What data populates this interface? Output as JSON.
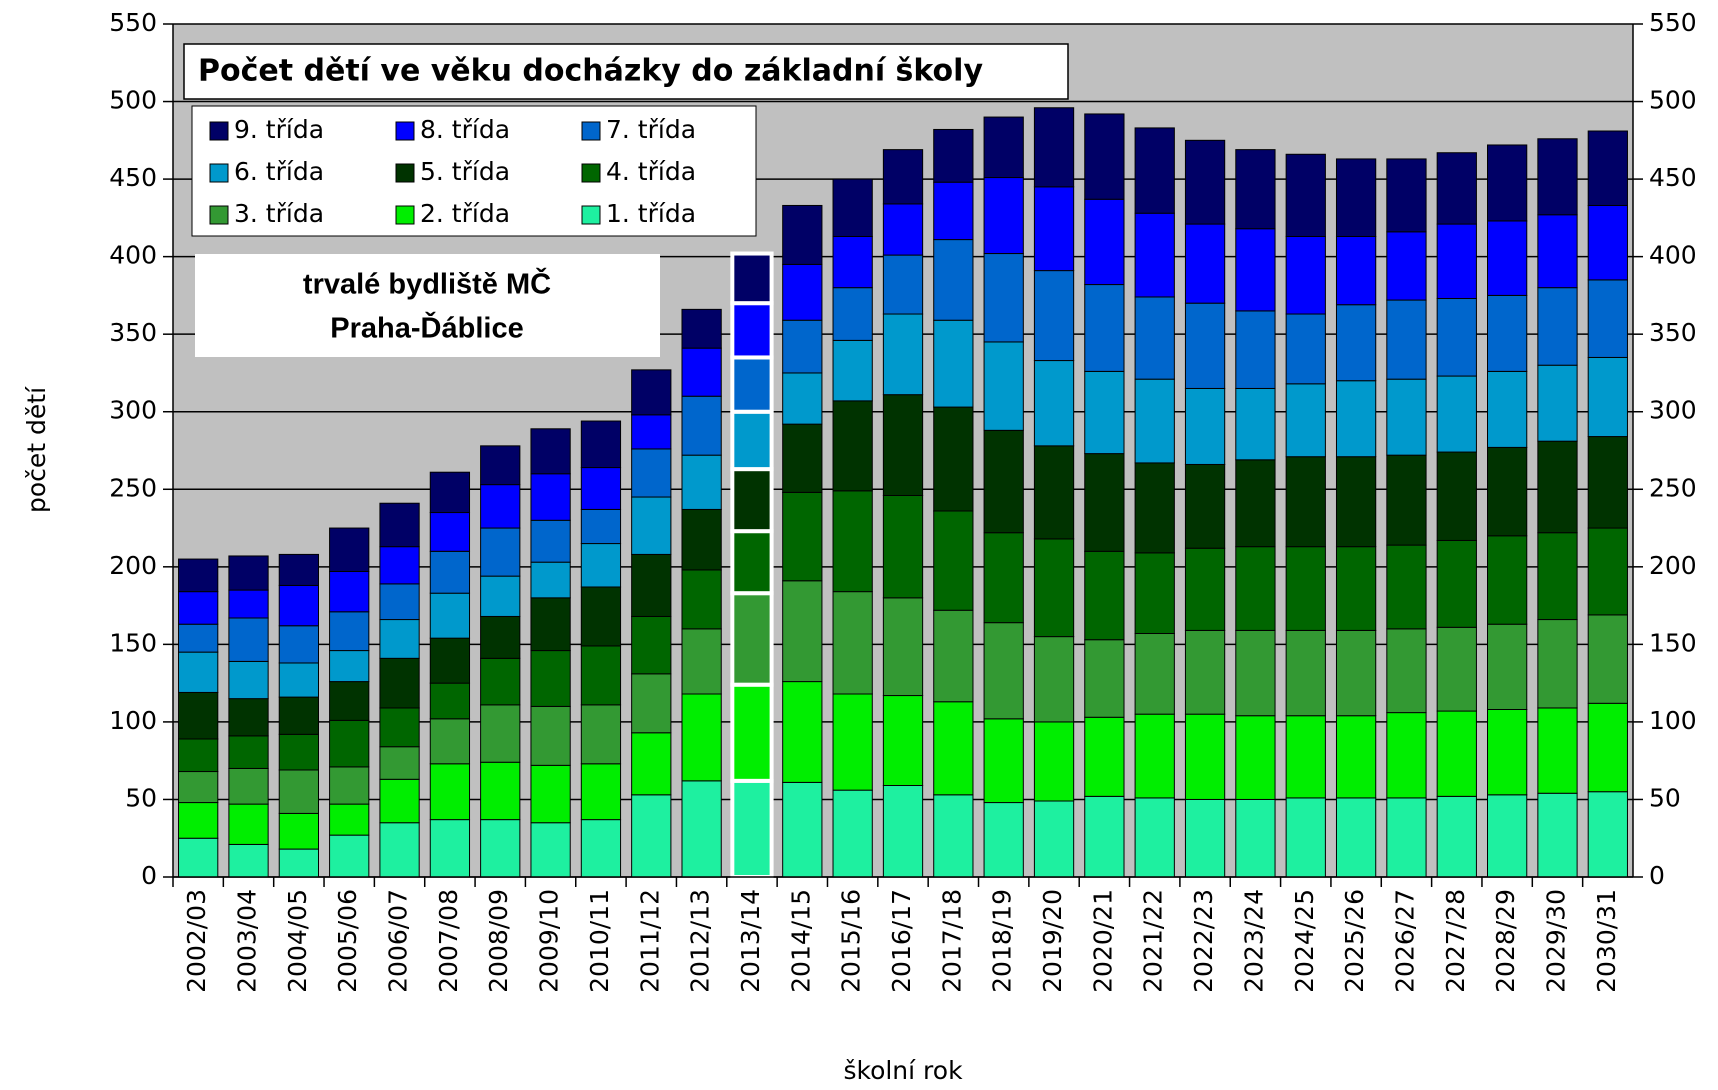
{
  "chart_data": {
    "type": "stacked_bar",
    "title": "Počet dětí ve věku docházky do základní školy",
    "annotation": [
      "trvalé bydliště MČ",
      "Praha-Ďáblice"
    ],
    "xlabel": "školní rok",
    "ylabel": "počet dětí",
    "categories": [
      "2002/03",
      "2003/04",
      "2004/05",
      "2005/06",
      "2006/07",
      "2007/08",
      "2008/09",
      "2009/10",
      "2010/11",
      "2011/12",
      "2012/13",
      "2013/14",
      "2014/15",
      "2015/16",
      "2016/17",
      "2017/18",
      "2018/19",
      "2019/20",
      "2020/21",
      "2021/22",
      "2022/23",
      "2023/24",
      "2024/25",
      "2025/26",
      "2026/27",
      "2027/28",
      "2028/29",
      "2029/30",
      "2030/31"
    ],
    "highlight": 11,
    "ylim": [
      0,
      550
    ],
    "yticks": [
      0,
      50,
      100,
      150,
      200,
      250,
      300,
      350,
      400,
      450,
      500,
      550
    ],
    "y2lim": [
      0,
      550
    ],
    "y2ticks": [
      0,
      50,
      100,
      150,
      200,
      250,
      300,
      350,
      400,
      450,
      500,
      550
    ],
    "grid": true,
    "legend": "top-left",
    "series": [
      {
        "name": "1. třída",
        "color": "#1ef0a0",
        "values": [
          25,
          21,
          18,
          27,
          35,
          37,
          37,
          35,
          37,
          53,
          62,
          62,
          61,
          56,
          59,
          53,
          48,
          49,
          52,
          51,
          50,
          50,
          51,
          51,
          51,
          52,
          53,
          54,
          55
        ]
      },
      {
        "name": "2. třída",
        "color": "#00ee00",
        "values": [
          23,
          26,
          23,
          20,
          28,
          36,
          37,
          37,
          36,
          40,
          56,
          62,
          65,
          62,
          58,
          60,
          54,
          51,
          51,
          54,
          55,
          54,
          53,
          53,
          55,
          55,
          55,
          55,
          57
        ]
      },
      {
        "name": "3. třída",
        "color": "#339933",
        "values": [
          20,
          23,
          28,
          24,
          21,
          29,
          37,
          38,
          38,
          38,
          42,
          59,
          65,
          66,
          63,
          59,
          62,
          55,
          50,
          52,
          54,
          55,
          55,
          55,
          54,
          54,
          55,
          57,
          57
        ]
      },
      {
        "name": "4. třída",
        "color": "#006600",
        "values": [
          21,
          21,
          23,
          30,
          25,
          23,
          30,
          36,
          38,
          37,
          38,
          40,
          57,
          65,
          66,
          64,
          58,
          63,
          57,
          52,
          53,
          54,
          54,
          54,
          54,
          56,
          57,
          56,
          56
        ]
      },
      {
        "name": "5. třída",
        "color": "#003300",
        "values": [
          30,
          24,
          24,
          25,
          32,
          29,
          27,
          34,
          38,
          40,
          39,
          40,
          44,
          58,
          65,
          67,
          66,
          60,
          63,
          58,
          54,
          56,
          58,
          58,
          58,
          57,
          57,
          59,
          59
        ]
      },
      {
        "name": "6. třída",
        "color": "#0099cc",
        "values": [
          26,
          24,
          22,
          20,
          25,
          29,
          26,
          23,
          28,
          37,
          35,
          37,
          33,
          39,
          52,
          56,
          57,
          55,
          53,
          54,
          49,
          46,
          47,
          49,
          49,
          49,
          49,
          49,
          51
        ]
      },
      {
        "name": "7. třída",
        "color": "#0066cc",
        "values": [
          18,
          28,
          24,
          25,
          23,
          27,
          31,
          27,
          22,
          31,
          38,
          35,
          34,
          34,
          38,
          52,
          57,
          58,
          56,
          53,
          55,
          50,
          45,
          49,
          51,
          50,
          49,
          50,
          50
        ]
      },
      {
        "name": "8. třída",
        "color": "#0000ff",
        "values": [
          21,
          18,
          26,
          26,
          24,
          25,
          28,
          30,
          27,
          22,
          31,
          35,
          36,
          33,
          33,
          37,
          49,
          54,
          55,
          54,
          51,
          53,
          50,
          44,
          44,
          48,
          48,
          47,
          48
        ]
      },
      {
        "name": "9. třída",
        "color": "#000066",
        "values": [
          21,
          22,
          20,
          28,
          28,
          26,
          25,
          29,
          30,
          29,
          25,
          32,
          38,
          37,
          35,
          34,
          39,
          51,
          55,
          55,
          54,
          51,
          53,
          50,
          47,
          46,
          49,
          49,
          48
        ]
      }
    ]
  }
}
